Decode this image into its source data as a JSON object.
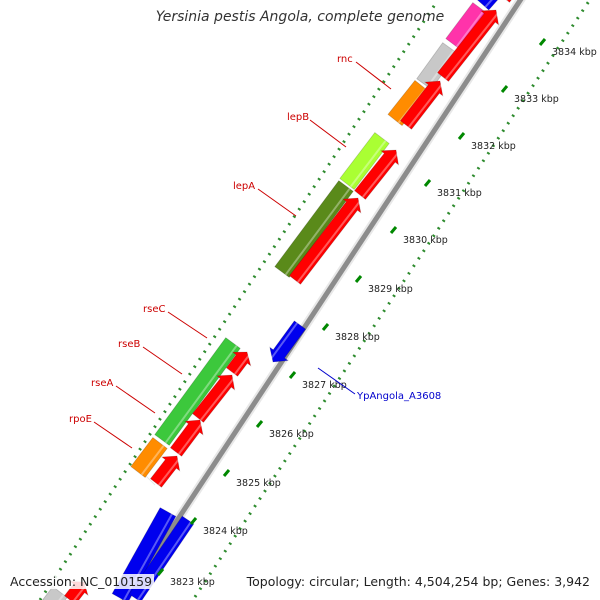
{
  "title": "Yersinia pestis Angola, complete genome",
  "footer": {
    "accession": "Accession: NC_010159",
    "summary": "Topology: circular; Length: 4,504,254 bp; Genes: 3,942"
  },
  "colors": {
    "red_feature": "#ff0000",
    "blue_feature": "#0000ee",
    "gene_label": "#cc0000",
    "locus_label": "#0000cc",
    "tick": "#008800",
    "backbone": "#888888"
  },
  "ruler": {
    "labels": [
      "3823 kbp",
      "3824 kbp",
      "3825 kbp",
      "3826 kbp",
      "3827 kbp",
      "3828 kbp",
      "3829 kbp",
      "3830 kbp",
      "3831 kbp",
      "3832 kbp",
      "3833 kbp",
      "3834 kbp"
    ]
  },
  "gene_labels": [
    "rnc",
    "lepB",
    "lepA",
    "rseC",
    "rseB",
    "rseA",
    "rpoE"
  ],
  "locus_labels": [
    "YpAngola_A3608"
  ]
}
